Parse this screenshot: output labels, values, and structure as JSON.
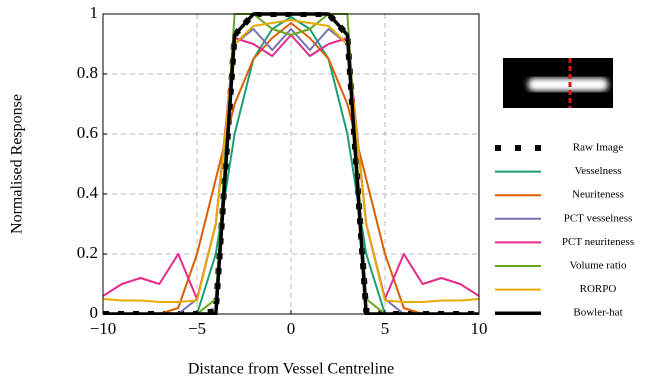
{
  "chart_data": {
    "type": "line",
    "xlabel": "Distance from Vessel Centreline",
    "ylabel": "Normalised Response",
    "x": [
      -10,
      -9,
      -8,
      -7,
      -6,
      -5,
      -4,
      -3,
      -2,
      -1,
      0,
      1,
      2,
      3,
      4,
      5,
      6,
      7,
      8,
      9,
      10
    ],
    "xlim": [
      -10,
      10
    ],
    "xticks": [
      {
        "value": -10,
        "label": "−10"
      },
      {
        "value": -5,
        "label": "−5"
      },
      0,
      5,
      10
    ],
    "ylim": [
      0,
      1
    ],
    "yticks": [
      0,
      0.2,
      0.4,
      0.6,
      0.8,
      1
    ],
    "grid": true,
    "series": [
      {
        "name": "Raw Image",
        "color": "#000000",
        "style": "dashed",
        "values": [
          0,
          0,
          0,
          0,
          0,
          0,
          0.01,
          0.93,
          1,
          1,
          1,
          1,
          1,
          0.93,
          0.01,
          0,
          0,
          0,
          0,
          0,
          0
        ]
      },
      {
        "name": "Vesselness",
        "color": "#1b9e77",
        "values": [
          0,
          0,
          0,
          0,
          0,
          0,
          0.2,
          0.6,
          0.85,
          0.95,
          0.99,
          0.95,
          0.85,
          0.6,
          0.2,
          0,
          0,
          0,
          0,
          0,
          0
        ]
      },
      {
        "name": "Neuriteness",
        "color": "#d95f02",
        "values": [
          0,
          0,
          0,
          0,
          0.02,
          0.2,
          0.45,
          0.7,
          0.85,
          0.92,
          0.97,
          0.92,
          0.85,
          0.7,
          0.45,
          0.2,
          0.02,
          0,
          0,
          0,
          0
        ]
      },
      {
        "name": "PCT vesselness",
        "color": "#7570b3",
        "values": [
          0,
          0,
          0,
          0,
          0,
          0.05,
          0.3,
          0.9,
          0.95,
          0.88,
          0.95,
          0.88,
          0.95,
          0.9,
          0.3,
          0.05,
          0,
          0,
          0,
          0,
          0
        ]
      },
      {
        "name": "PCT neuriteness",
        "color": "#e7298a",
        "values": [
          0.06,
          0.1,
          0.12,
          0.1,
          0.2,
          0.05,
          0.3,
          0.92,
          0.9,
          0.86,
          0.93,
          0.86,
          0.9,
          0.92,
          0.3,
          0.05,
          0.2,
          0.1,
          0.12,
          0.1,
          0.06
        ]
      },
      {
        "name": "Volume ratio",
        "color": "#66a61e",
        "values": [
          0,
          0,
          0,
          0,
          0,
          0,
          0.05,
          1,
          1,
          0.95,
          0.93,
          0.95,
          1,
          1,
          0.05,
          0,
          0,
          0,
          0,
          0,
          0
        ]
      },
      {
        "name": "RORPO",
        "color": "#e6ab02",
        "values": [
          0.05,
          0.045,
          0.045,
          0.04,
          0.04,
          0.045,
          0.3,
          0.9,
          0.96,
          0.97,
          0.98,
          0.97,
          0.96,
          0.9,
          0.3,
          0.045,
          0.04,
          0.04,
          0.045,
          0.045,
          0.05
        ]
      },
      {
        "name": "Bowler-hat",
        "color": "#000000",
        "values": [
          0,
          0,
          0,
          0,
          0,
          0,
          0,
          0.93,
          1,
          1,
          1,
          1,
          1,
          0.93,
          0,
          0,
          0,
          0,
          0,
          0,
          0
        ]
      }
    ]
  }
}
